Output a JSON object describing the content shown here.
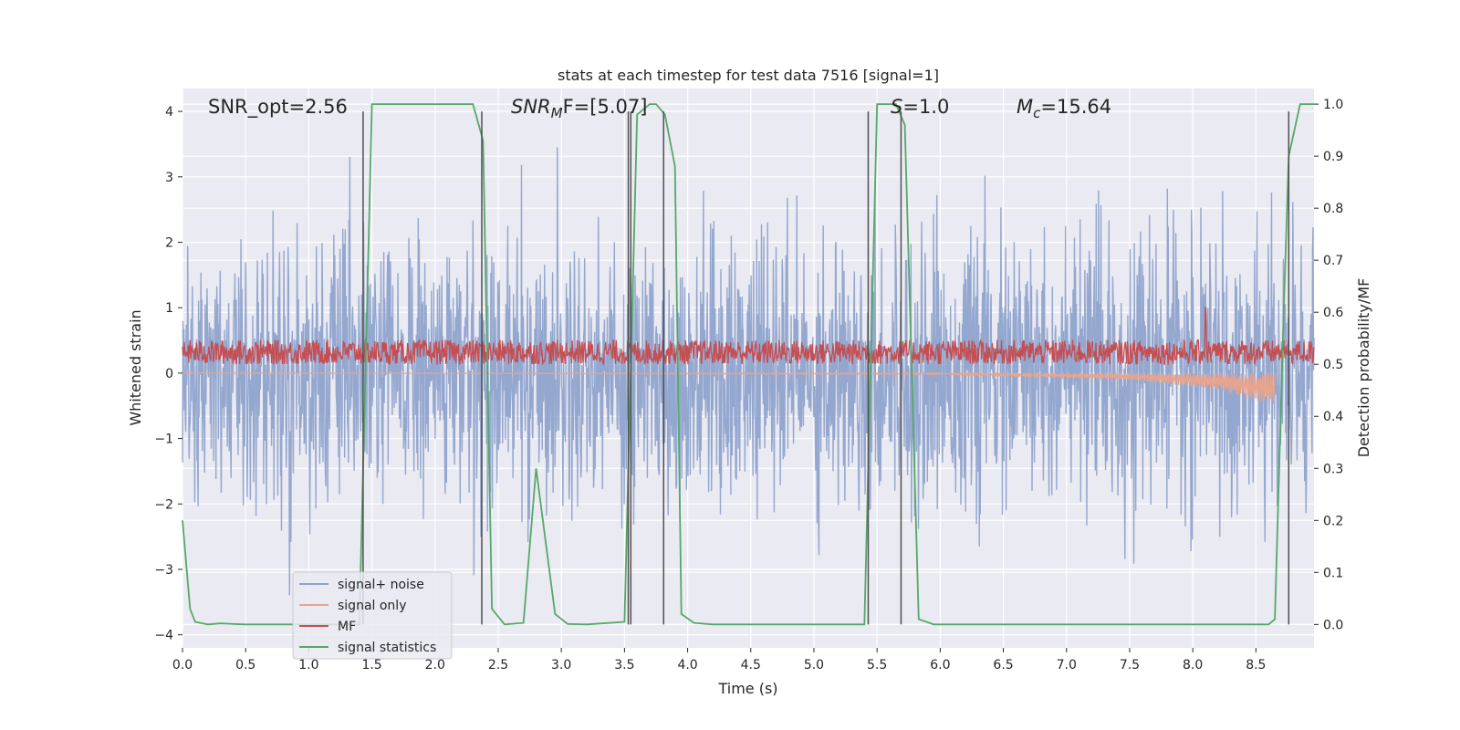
{
  "chart_data": {
    "type": "line",
    "title": "stats at each timestep for test data 7516 [signal=1]",
    "xlabel": "Time (s)",
    "ylabel_left": "Whitened strain",
    "ylabel_right": "Detection probability/MF",
    "xlim": [
      0.0,
      8.96
    ],
    "ylim_left": [
      -4.2,
      4.35
    ],
    "ylim_right": [
      -0.045,
      1.03
    ],
    "x_ticks": [
      0.0,
      0.5,
      1.0,
      1.5,
      2.0,
      2.5,
      3.0,
      3.5,
      4.0,
      4.5,
      5.0,
      5.5,
      6.0,
      6.5,
      7.0,
      7.5,
      8.0,
      8.5
    ],
    "x_tick_labels": [
      "0.0",
      "0.5",
      "1.0",
      "1.5",
      "2.0",
      "2.5",
      "3.0",
      "3.5",
      "4.0",
      "4.5",
      "5.0",
      "5.5",
      "6.0",
      "6.5",
      "7.0",
      "7.5",
      "8.0",
      "8.5"
    ],
    "y_left_ticks": [
      4,
      3,
      2,
      1,
      0,
      -1,
      -2,
      -3,
      -4
    ],
    "y_left_tick_labels": [
      "4",
      "3",
      "2",
      "1",
      "0",
      "−1",
      "−2",
      "−3",
      "−4"
    ],
    "y_right_ticks": [
      1.0,
      0.9,
      0.8,
      0.7,
      0.6,
      0.5,
      0.4,
      0.3,
      0.2,
      0.1,
      0.0
    ],
    "y_right_tick_labels": [
      "1.0",
      "0.9",
      "0.8",
      "0.7",
      "0.6",
      "0.5",
      "0.4",
      "0.3",
      "0.2",
      "0.1",
      "0.0"
    ],
    "annotations": {
      "snr_opt": "SNR_opt=2.56",
      "snr_mf_base": "SNR",
      "snr_mf_sub": "M",
      "snr_mf_rest": "F=[5.07]",
      "s_var": "S",
      "s_rest": "=1.0",
      "mc_base": "M",
      "mc_sub": "c",
      "mc_rest": "=15.64"
    },
    "series": [
      {
        "name": "signal+ noise",
        "color": "#8fa3cc",
        "noise_amplitude": 1.0,
        "baseline": 0.0
      },
      {
        "name": "signal only",
        "color": "#e8a48c",
        "description_points": [
          [
            0.0,
            0.0
          ],
          [
            6.0,
            -0.02
          ],
          [
            7.5,
            -0.1
          ],
          [
            8.2,
            -0.25
          ],
          [
            8.65,
            -0.5
          ]
        ]
      },
      {
        "name": "MF",
        "color": "#c44e52",
        "baseline": 0.3,
        "spike": [
          8.1,
          1.0
        ]
      },
      {
        "name": "signal statistics",
        "color": "#55a868",
        "x": [
          0.0,
          0.06,
          0.1,
          0.2,
          0.3,
          0.4,
          0.5,
          1.0,
          1.4,
          1.5,
          2.0,
          2.3,
          2.38,
          2.45,
          2.55,
          2.7,
          2.8,
          2.95,
          3.05,
          3.2,
          3.5,
          3.6,
          3.7,
          3.75,
          3.82,
          3.9,
          3.95,
          4.05,
          4.2,
          5.0,
          5.4,
          5.5,
          5.65,
          5.72,
          5.83,
          5.95,
          6.5,
          7.5,
          8.6,
          8.65,
          8.72,
          8.76,
          8.85,
          8.96
        ],
        "y": [
          0.2,
          0.03,
          0.005,
          0.0,
          0.002,
          0.001,
          0.0,
          0.0,
          0.0,
          1.0,
          1.0,
          1.0,
          0.93,
          0.03,
          0.0,
          0.003,
          0.3,
          0.02,
          0.001,
          0.0,
          0.005,
          0.98,
          1.0,
          1.0,
          0.98,
          0.88,
          0.02,
          0.003,
          0.0,
          0.0,
          0.0,
          1.0,
          1.0,
          0.96,
          0.01,
          0.0,
          0.0,
          0.0,
          0.0,
          0.01,
          0.6,
          0.9,
          1.0,
          1.0
        ]
      }
    ],
    "vertical_lines": [
      1.43,
      2.37,
      3.53,
      3.55,
      3.81,
      5.43,
      5.69,
      8.76
    ],
    "legend": [
      "signal+ noise",
      "signal only",
      "MF",
      "signal statistics"
    ],
    "legend_location": "lower-left",
    "grid": true
  },
  "colors": {
    "plot_background": "#eaeaf2",
    "grid": "#ffffff",
    "vlines": "#505050"
  }
}
